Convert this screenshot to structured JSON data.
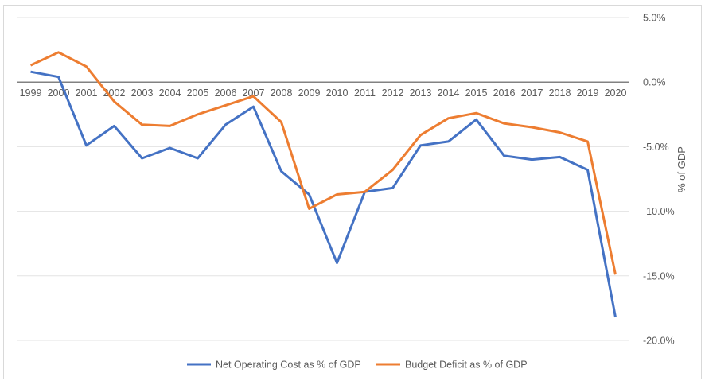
{
  "chart_data": {
    "type": "line",
    "title": "",
    "xlabel": "",
    "ylabel": "% of GDP",
    "y_axis_position": "right",
    "ylim": [
      -20,
      5
    ],
    "y_ticks": [
      5,
      0,
      -5,
      -10,
      -15,
      -20
    ],
    "y_tick_labels": [
      "5.0%",
      "0.0%",
      "-5.0%",
      "-10.0%",
      "-15.0%",
      "-20.0%"
    ],
    "grid": true,
    "legend_position": "bottom",
    "categories": [
      "1999",
      "2000",
      "2001",
      "2002",
      "2003",
      "2004",
      "2005",
      "2006",
      "2007",
      "2008",
      "2009",
      "2010",
      "2011",
      "2012",
      "2013",
      "2014",
      "2015",
      "2016",
      "2017",
      "2018",
      "2019",
      "2020"
    ],
    "series": [
      {
        "name": "Net Operating Cost as % of GDP",
        "color": "#4472C4",
        "values": [
          0.8,
          0.4,
          -4.9,
          -3.4,
          -5.9,
          -5.1,
          -5.9,
          -3.3,
          -1.9,
          -6.9,
          -8.7,
          -14.0,
          -8.5,
          -8.2,
          -4.9,
          -4.6,
          -2.9,
          -5.7,
          -6.0,
          -5.8,
          -6.8,
          -18.2
        ]
      },
      {
        "name": "Budget Deficit as % of GDP",
        "color": "#ED7D31",
        "values": [
          1.3,
          2.3,
          1.2,
          -1.5,
          -3.3,
          -3.4,
          -2.5,
          -1.8,
          -1.1,
          -3.1,
          -9.8,
          -8.7,
          -8.5,
          -6.8,
          -4.1,
          -2.8,
          -2.4,
          -3.2,
          -3.5,
          -3.9,
          -4.6,
          -14.9
        ]
      }
    ]
  }
}
